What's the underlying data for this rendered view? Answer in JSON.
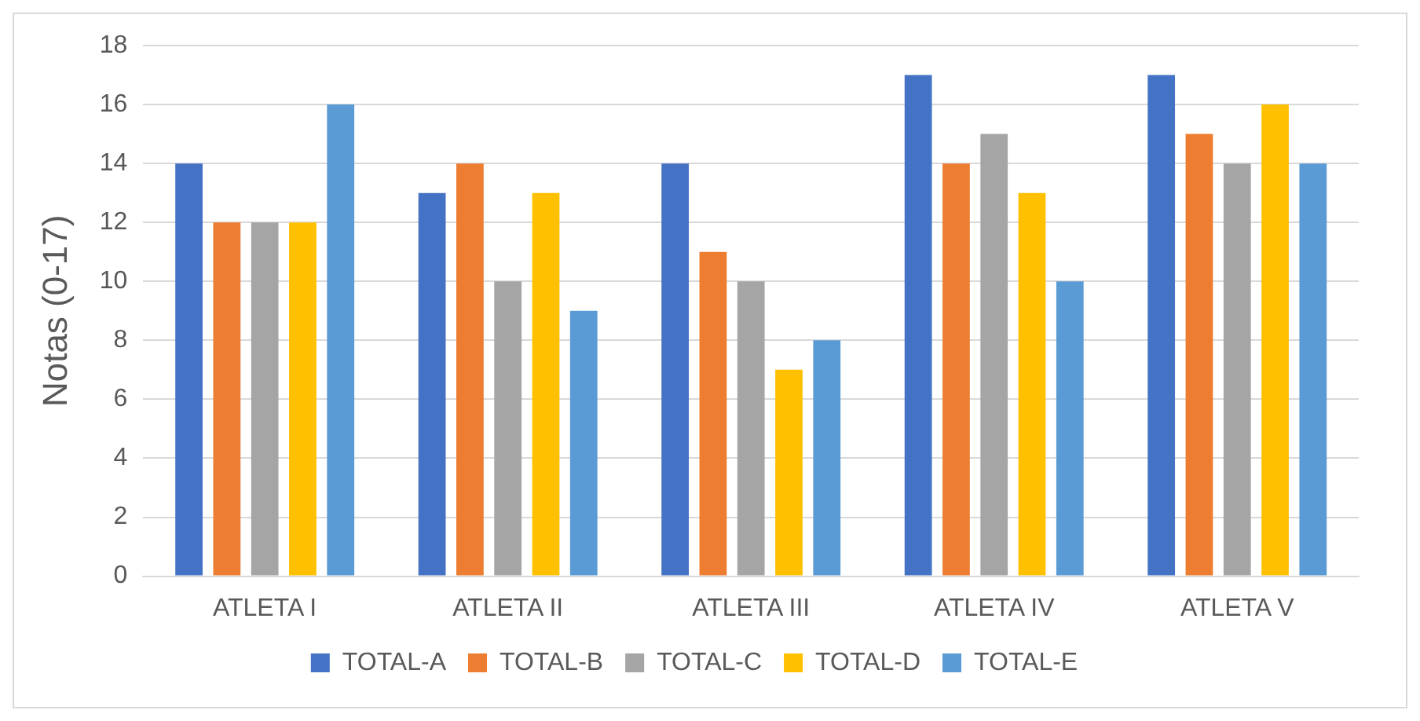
{
  "chart_data": {
    "type": "bar",
    "ylabel": "Notas (0-17)",
    "categories": [
      "ATLETA I",
      "ATLETA II",
      "ATLETA III",
      "ATLETA IV",
      "ATLETA V"
    ],
    "series": [
      {
        "name": "TOTAL-A",
        "color": "#4472c4",
        "values": [
          14,
          13,
          14,
          17,
          17
        ]
      },
      {
        "name": "TOTAL-B",
        "color": "#ed7d31",
        "values": [
          12,
          14,
          11,
          14,
          15
        ]
      },
      {
        "name": "TOTAL-C",
        "color": "#a5a5a5",
        "values": [
          12,
          10,
          10,
          15,
          14
        ]
      },
      {
        "name": "TOTAL-D",
        "color": "#ffc000",
        "values": [
          12,
          13,
          7,
          13,
          16
        ]
      },
      {
        "name": "TOTAL-E",
        "color": "#5b9bd5",
        "values": [
          16,
          9,
          8,
          10,
          14
        ]
      }
    ],
    "ylim": [
      0,
      18
    ],
    "yticks": [
      0,
      2,
      4,
      6,
      8,
      10,
      12,
      14,
      16,
      18
    ],
    "grid": "y",
    "legend": "bottom"
  }
}
